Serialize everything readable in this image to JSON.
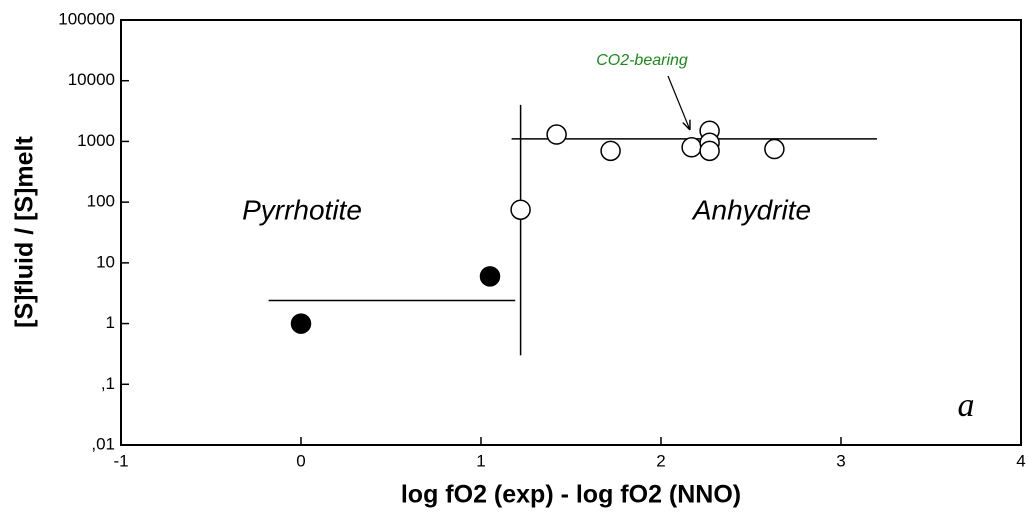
{
  "chart_data": {
    "type": "scatter",
    "xlabel": "log fO2 (exp) - log fO2 (NNO)",
    "ylabel": "[S]fluid / [S]melt",
    "xlim": [
      -1,
      4
    ],
    "xticks": [
      -1,
      0,
      1,
      2,
      3,
      4
    ],
    "ylim": [
      0.01,
      100000
    ],
    "ylog": true,
    "yticks": [
      {
        "value": 0.01,
        "label": ",01"
      },
      {
        "value": 0.1,
        "label": ",1"
      },
      1,
      10,
      100,
      1000,
      10000,
      100000
    ],
    "series": [
      {
        "marker": "filled",
        "color": "#000000",
        "x": [
          0,
          1.05
        ],
        "values": [
          1,
          6
        ]
      },
      {
        "marker": "open",
        "color": "#000000",
        "x": [
          1.22,
          1.42,
          1.72,
          2.17,
          2.27,
          2.27,
          2.27,
          2.63
        ],
        "values": [
          75,
          1300,
          700,
          800,
          1500,
          950,
          700,
          750
        ]
      }
    ],
    "lines": [
      {
        "x": [
          -0.18,
          1.19
        ],
        "y": [
          2.4,
          2.4
        ]
      },
      {
        "x": [
          1.22,
          1.22
        ],
        "y": [
          0.3,
          4000
        ]
      },
      {
        "x": [
          1.17,
          3.2
        ],
        "y": [
          1100,
          1100
        ]
      }
    ],
    "annotations": [
      "Pyrrhotite",
      "Anhydrite",
      "CO2-bearing",
      "a"
    ]
  }
}
